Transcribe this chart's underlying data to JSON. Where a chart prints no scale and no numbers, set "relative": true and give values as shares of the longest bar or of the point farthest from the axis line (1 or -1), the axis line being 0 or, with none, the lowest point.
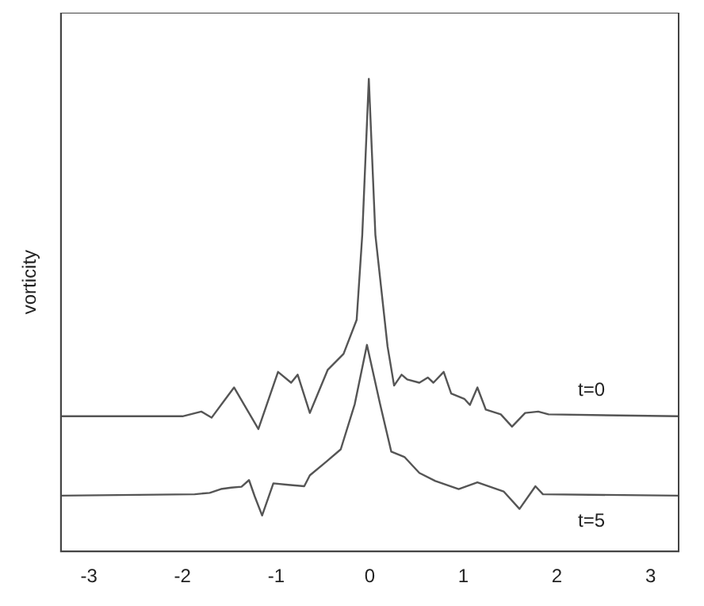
{
  "chart_data": {
    "type": "line",
    "ylabel": "vorticity",
    "relative": true,
    "xlim": [
      -3.3,
      3.3
    ],
    "xticks": [
      -3,
      -2,
      -1,
      0,
      1,
      2,
      3
    ],
    "grid": false,
    "legend": false,
    "marker": "none",
    "line_style": "solid",
    "series": [
      {
        "name": "t=0",
        "color": "#555555",
        "x": [
          -3.3,
          -2.0,
          -1.8,
          -1.69,
          -1.45,
          -1.19,
          -0.98,
          -0.84,
          -0.77,
          -0.64,
          -0.45,
          -0.28,
          -0.14,
          -0.08,
          -0.01,
          0.06,
          0.19,
          0.26,
          0.34,
          0.4,
          0.53,
          0.62,
          0.68,
          0.79,
          0.87,
          1.01,
          1.07,
          1.15,
          1.24,
          1.4,
          1.52,
          1.66,
          1.8,
          1.91,
          3.3
        ],
        "values": [
          0.286,
          0.286,
          0.296,
          0.283,
          0.347,
          0.259,
          0.38,
          0.357,
          0.374,
          0.293,
          0.384,
          0.418,
          0.49,
          0.67,
          1.0,
          0.67,
          0.434,
          0.351,
          0.374,
          0.364,
          0.357,
          0.368,
          0.357,
          0.38,
          0.334,
          0.323,
          0.31,
          0.347,
          0.3,
          0.29,
          0.264,
          0.293,
          0.296,
          0.29,
          0.286
        ]
      },
      {
        "name": "t=5",
        "color": "#555555",
        "x": [
          -3.3,
          -1.87,
          -1.71,
          -1.59,
          -1.48,
          -1.37,
          -1.29,
          -1.23,
          -1.15,
          -1.09,
          -1.03,
          -0.87,
          -0.7,
          -0.64,
          -0.47,
          -0.31,
          -0.16,
          -0.03,
          0.11,
          0.23,
          0.37,
          0.53,
          0.7,
          0.95,
          1.15,
          1.43,
          1.6,
          1.77,
          1.85,
          3.3
        ],
        "values": [
          0.118,
          0.121,
          0.124,
          0.132,
          0.135,
          0.137,
          0.151,
          0.117,
          0.076,
          0.11,
          0.144,
          0.141,
          0.138,
          0.161,
          0.189,
          0.216,
          0.312,
          0.437,
          0.312,
          0.211,
          0.2,
          0.166,
          0.149,
          0.132,
          0.146,
          0.127,
          0.09,
          0.138,
          0.121,
          0.118
        ]
      }
    ]
  }
}
